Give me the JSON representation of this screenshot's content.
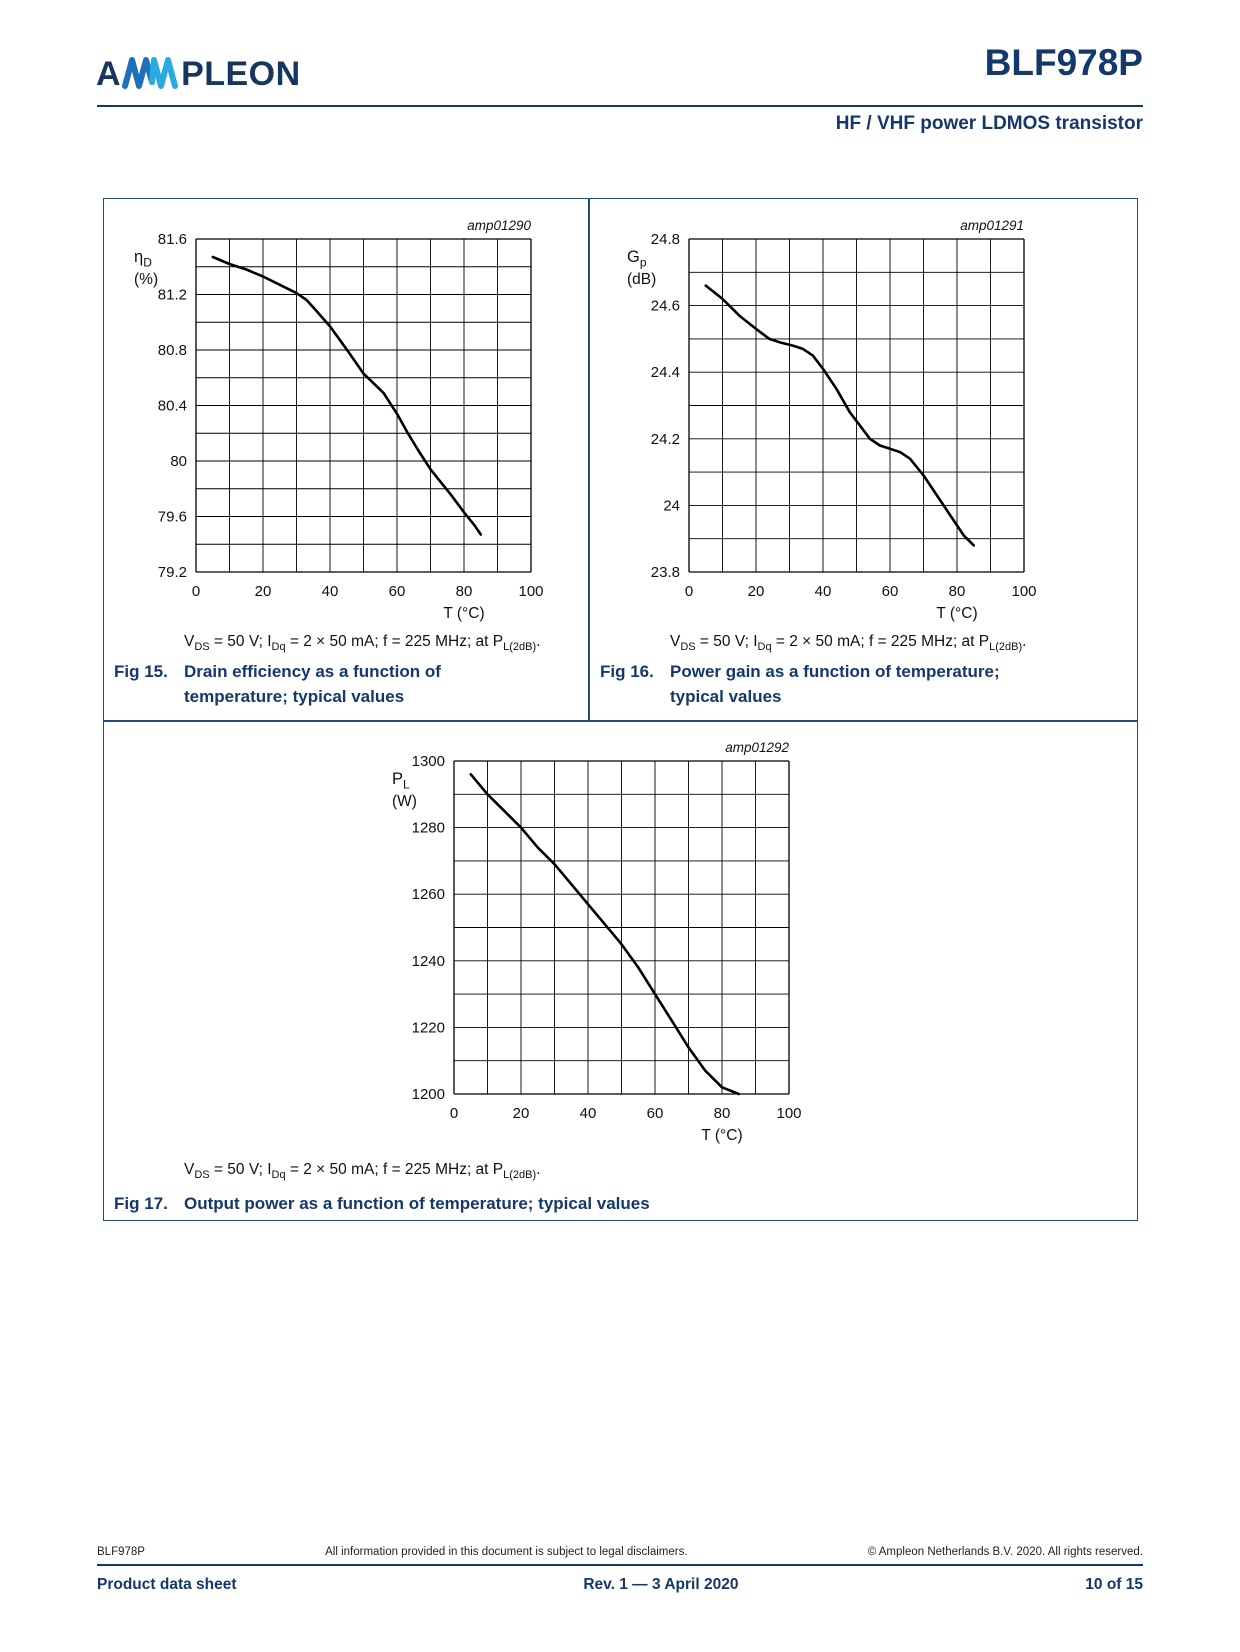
{
  "header": {
    "brand_prefix": "A",
    "brand_suffix": "PLEON",
    "product_title": "BLF978P",
    "subtitle": "HF / VHF power LDMOS transistor"
  },
  "conditions": {
    "segments": [
      {
        "t": "V"
      },
      {
        "sub": "DS"
      },
      {
        "t": " = 50 V; I"
      },
      {
        "sub": "Dq"
      },
      {
        "t": " = 2 × 50 mA; f = 225 MHz; at P"
      },
      {
        "sub": "L(2dB)"
      },
      {
        "t": "."
      }
    ]
  },
  "figures": {
    "fig15": {
      "label": "Fig 15.",
      "caption": "Drain efficiency as a function of temperature; typical values"
    },
    "fig16": {
      "label": "Fig 16.",
      "caption": "Power gain as a function of temperature; typical values"
    },
    "fig17": {
      "label": "Fig 17.",
      "caption": "Output power as a function of temperature; typical values"
    }
  },
  "chart_data": [
    {
      "type": "line",
      "code": "amp01290",
      "title": "Drain efficiency as a function of temperature; typical values",
      "xlabel": "T (°C)",
      "ylabel": {
        "main": "η",
        "sub": "D",
        "unit": "(%)"
      },
      "xlim": [
        0,
        100
      ],
      "ylim": [
        79.2,
        81.6
      ],
      "x_grid_step": 10,
      "x_label_step": 20,
      "y_grid_step": 0.2,
      "y_label_step": 0.4,
      "grid": true,
      "legend": "none",
      "xlabel_x": 80,
      "series": [
        {
          "name": "typical values",
          "x": [
            5,
            10,
            15,
            20,
            25,
            30,
            33,
            36,
            40,
            43,
            46,
            50,
            53,
            56,
            60,
            63,
            66,
            70,
            73,
            76,
            80,
            83,
            85
          ],
          "y": [
            81.47,
            81.42,
            81.38,
            81.33,
            81.27,
            81.21,
            81.16,
            81.08,
            80.97,
            80.87,
            80.77,
            80.63,
            80.56,
            80.49,
            80.34,
            80.21,
            80.09,
            79.94,
            79.85,
            79.76,
            79.63,
            79.54,
            79.47
          ]
        }
      ]
    },
    {
      "type": "line",
      "code": "amp01291",
      "title": "Power gain as a function of temperature; typical values",
      "xlabel": "T (°C)",
      "ylabel": {
        "main": "G",
        "sub": "p",
        "unit": "(dB)"
      },
      "xlim": [
        0,
        100
      ],
      "ylim": [
        23.8,
        24.8
      ],
      "x_grid_step": 10,
      "x_label_step": 20,
      "y_grid_step": 0.1,
      "y_label_step": 0.2,
      "grid": true,
      "legend": "none",
      "xlabel_x": 80,
      "series": [
        {
          "name": "typical values",
          "x": [
            5,
            10,
            15,
            20,
            24,
            27,
            31,
            34,
            37,
            40,
            44,
            48,
            51,
            54,
            57,
            60,
            63,
            66,
            70,
            74,
            78,
            82,
            85
          ],
          "y": [
            24.66,
            24.62,
            24.57,
            24.53,
            24.5,
            24.49,
            24.48,
            24.47,
            24.45,
            24.41,
            24.35,
            24.28,
            24.24,
            24.2,
            24.18,
            24.17,
            24.16,
            24.14,
            24.09,
            24.03,
            23.97,
            23.91,
            23.88
          ]
        }
      ]
    },
    {
      "type": "line",
      "code": "amp01292",
      "title": "Output power as a function of temperature; typical values",
      "xlabel": "T (°C)",
      "ylabel": {
        "main": "P",
        "sub": "L",
        "unit": "(W)"
      },
      "xlim": [
        0,
        100
      ],
      "ylim": [
        1200,
        1300
      ],
      "x_grid_step": 10,
      "x_label_step": 20,
      "y_grid_step": 10,
      "y_label_step": 20,
      "grid": true,
      "legend": "none",
      "xlabel_x": 80,
      "series": [
        {
          "name": "typical values",
          "x": [
            5,
            10,
            15,
            20,
            25,
            30,
            35,
            40,
            45,
            50,
            55,
            60,
            65,
            70,
            75,
            80,
            85
          ],
          "y": [
            1296,
            1290,
            1285,
            1280,
            1274,
            1269,
            1263,
            1257,
            1251,
            1245,
            1238,
            1230,
            1222,
            1214,
            1207,
            1202,
            1200
          ]
        }
      ]
    }
  ],
  "footer": {
    "row1": {
      "left": "BLF978P",
      "center": "All information provided in this document is subject to legal disclaimers.",
      "right": "© Ampleon Netherlands B.V. 2020. All rights reserved."
    },
    "row2": {
      "left": "Product data sheet",
      "center": "Rev. 1 — 3 April 2020",
      "right": "10 of 15"
    }
  }
}
